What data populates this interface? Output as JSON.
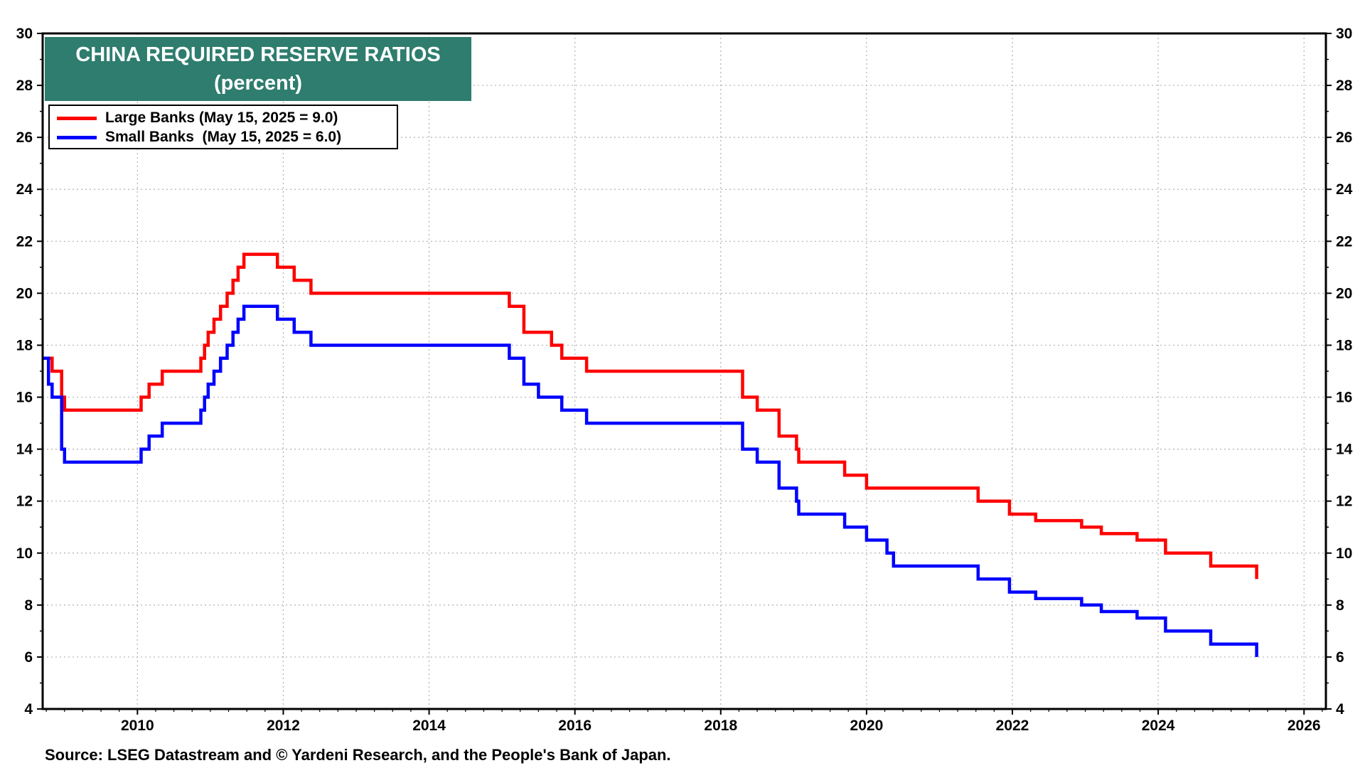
{
  "chart_data": {
    "type": "line",
    "title": "CHINA REQUIRED RESERVE RATIOS",
    "subtitle": "(percent)",
    "ylim": [
      4,
      30
    ],
    "yticks": [
      4,
      6,
      8,
      10,
      12,
      14,
      16,
      18,
      20,
      22,
      24,
      26,
      28,
      30
    ],
    "xlim": [
      2008.7,
      2026.3
    ],
    "xticks": [
      "2010",
      "2012",
      "2014",
      "2016",
      "2018",
      "2020",
      "2022",
      "2024",
      "2026"
    ],
    "grid": true,
    "legend_position": "top-left",
    "series": [
      {
        "name": "Large Banks (May 15, 2025 = 9.0)",
        "color": "#ff0000",
        "points": [
          [
            2008.7,
            17.5
          ],
          [
            2008.83,
            17.5
          ],
          [
            2008.83,
            17.0
          ],
          [
            2008.96,
            17.0
          ],
          [
            2008.96,
            16.0
          ],
          [
            2009.0,
            16.0
          ],
          [
            2009.0,
            15.5
          ],
          [
            2010.05,
            15.5
          ],
          [
            2010.05,
            16.0
          ],
          [
            2010.16,
            16.0
          ],
          [
            2010.16,
            16.5
          ],
          [
            2010.34,
            16.5
          ],
          [
            2010.34,
            17.0
          ],
          [
            2010.87,
            17.0
          ],
          [
            2010.87,
            17.5
          ],
          [
            2010.92,
            17.5
          ],
          [
            2010.92,
            18.0
          ],
          [
            2010.97,
            18.0
          ],
          [
            2010.97,
            18.5
          ],
          [
            2011.05,
            18.5
          ],
          [
            2011.05,
            19.0
          ],
          [
            2011.14,
            19.0
          ],
          [
            2011.14,
            19.5
          ],
          [
            2011.23,
            19.5
          ],
          [
            2011.23,
            20.0
          ],
          [
            2011.31,
            20.0
          ],
          [
            2011.31,
            20.5
          ],
          [
            2011.38,
            20.5
          ],
          [
            2011.38,
            21.0
          ],
          [
            2011.46,
            21.0
          ],
          [
            2011.46,
            21.5
          ],
          [
            2011.92,
            21.5
          ],
          [
            2011.92,
            21.0
          ],
          [
            2012.15,
            21.0
          ],
          [
            2012.15,
            20.5
          ],
          [
            2012.38,
            20.5
          ],
          [
            2012.38,
            20.0
          ],
          [
            2015.1,
            20.0
          ],
          [
            2015.1,
            19.5
          ],
          [
            2015.3,
            19.5
          ],
          [
            2015.3,
            18.5
          ],
          [
            2015.68,
            18.5
          ],
          [
            2015.68,
            18.0
          ],
          [
            2015.82,
            18.0
          ],
          [
            2015.82,
            17.5
          ],
          [
            2016.16,
            17.5
          ],
          [
            2016.16,
            17.0
          ],
          [
            2018.3,
            17.0
          ],
          [
            2018.3,
            16.0
          ],
          [
            2018.5,
            16.0
          ],
          [
            2018.5,
            15.5
          ],
          [
            2018.8,
            15.5
          ],
          [
            2018.8,
            14.5
          ],
          [
            2019.04,
            14.5
          ],
          [
            2019.04,
            14.0
          ],
          [
            2019.07,
            14.0
          ],
          [
            2019.07,
            13.5
          ],
          [
            2019.7,
            13.5
          ],
          [
            2019.7,
            13.0
          ],
          [
            2020.0,
            13.0
          ],
          [
            2020.0,
            12.5
          ],
          [
            2021.53,
            12.5
          ],
          [
            2021.53,
            12.0
          ],
          [
            2021.96,
            12.0
          ],
          [
            2021.96,
            11.5
          ],
          [
            2022.32,
            11.5
          ],
          [
            2022.32,
            11.25
          ],
          [
            2022.95,
            11.25
          ],
          [
            2022.95,
            11.0
          ],
          [
            2023.22,
            11.0
          ],
          [
            2023.22,
            10.75
          ],
          [
            2023.71,
            10.75
          ],
          [
            2023.71,
            10.5
          ],
          [
            2024.1,
            10.5
          ],
          [
            2024.1,
            10.0
          ],
          [
            2024.72,
            10.0
          ],
          [
            2024.72,
            9.5
          ],
          [
            2025.35,
            9.5
          ],
          [
            2025.35,
            9.0
          ]
        ]
      },
      {
        "name": "Small Banks  (May 15, 2025 = 6.0)",
        "color": "#0000ff",
        "points": [
          [
            2008.7,
            17.5
          ],
          [
            2008.78,
            17.5
          ],
          [
            2008.78,
            16.5
          ],
          [
            2008.83,
            16.5
          ],
          [
            2008.83,
            16.0
          ],
          [
            2008.96,
            16.0
          ],
          [
            2008.96,
            14.0
          ],
          [
            2009.0,
            14.0
          ],
          [
            2009.0,
            13.5
          ],
          [
            2010.05,
            13.5
          ],
          [
            2010.05,
            14.0
          ],
          [
            2010.16,
            14.0
          ],
          [
            2010.16,
            14.5
          ],
          [
            2010.34,
            14.5
          ],
          [
            2010.34,
            15.0
          ],
          [
            2010.87,
            15.0
          ],
          [
            2010.87,
            15.5
          ],
          [
            2010.92,
            15.5
          ],
          [
            2010.92,
            16.0
          ],
          [
            2010.97,
            16.0
          ],
          [
            2010.97,
            16.5
          ],
          [
            2011.05,
            16.5
          ],
          [
            2011.05,
            17.0
          ],
          [
            2011.14,
            17.0
          ],
          [
            2011.14,
            17.5
          ],
          [
            2011.23,
            17.5
          ],
          [
            2011.23,
            18.0
          ],
          [
            2011.31,
            18.0
          ],
          [
            2011.31,
            18.5
          ],
          [
            2011.38,
            18.5
          ],
          [
            2011.38,
            19.0
          ],
          [
            2011.46,
            19.0
          ],
          [
            2011.46,
            19.5
          ],
          [
            2011.92,
            19.5
          ],
          [
            2011.92,
            19.0
          ],
          [
            2012.15,
            19.0
          ],
          [
            2012.15,
            18.5
          ],
          [
            2012.38,
            18.5
          ],
          [
            2012.38,
            18.0
          ],
          [
            2015.1,
            18.0
          ],
          [
            2015.1,
            17.5
          ],
          [
            2015.3,
            17.5
          ],
          [
            2015.3,
            16.5
          ],
          [
            2015.5,
            16.5
          ],
          [
            2015.5,
            16.0
          ],
          [
            2015.82,
            16.0
          ],
          [
            2015.82,
            15.5
          ],
          [
            2016.16,
            15.5
          ],
          [
            2016.16,
            15.0
          ],
          [
            2018.3,
            15.0
          ],
          [
            2018.3,
            14.0
          ],
          [
            2018.5,
            14.0
          ],
          [
            2018.5,
            13.5
          ],
          [
            2018.8,
            13.5
          ],
          [
            2018.8,
            12.5
          ],
          [
            2019.04,
            12.5
          ],
          [
            2019.04,
            12.0
          ],
          [
            2019.07,
            12.0
          ],
          [
            2019.07,
            11.5
          ],
          [
            2019.7,
            11.5
          ],
          [
            2019.7,
            11.0
          ],
          [
            2020.0,
            11.0
          ],
          [
            2020.0,
            10.5
          ],
          [
            2020.28,
            10.5
          ],
          [
            2020.28,
            10.0
          ],
          [
            2020.37,
            10.0
          ],
          [
            2020.37,
            9.5
          ],
          [
            2021.53,
            9.5
          ],
          [
            2021.53,
            9.0
          ],
          [
            2021.96,
            9.0
          ],
          [
            2021.96,
            8.5
          ],
          [
            2022.32,
            8.5
          ],
          [
            2022.32,
            8.25
          ],
          [
            2022.95,
            8.25
          ],
          [
            2022.95,
            8.0
          ],
          [
            2023.22,
            8.0
          ],
          [
            2023.22,
            7.75
          ],
          [
            2023.71,
            7.75
          ],
          [
            2023.71,
            7.5
          ],
          [
            2024.1,
            7.5
          ],
          [
            2024.1,
            7.0
          ],
          [
            2024.72,
            7.0
          ],
          [
            2024.72,
            6.5
          ],
          [
            2025.35,
            6.5
          ],
          [
            2025.35,
            6.0
          ]
        ]
      }
    ]
  },
  "source": "Source: LSEG Datastream and © Yardeni Research, and the People's Bank of Japan."
}
